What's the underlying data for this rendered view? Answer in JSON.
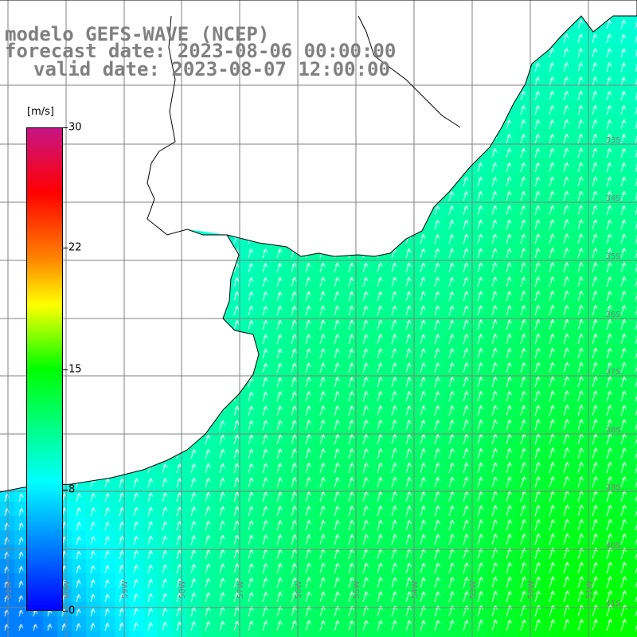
{
  "title": {
    "line1": "modelo GEFS-WAVE (NCEP)",
    "line2": "forecast date: 2023-08-06 00:00:00",
    "line3": "valid date: 2023-08-07 12:00:00"
  },
  "colorbar": {
    "unit": "[m/s]",
    "min": 0,
    "max": 30,
    "tick_labels": [
      "30",
      "22",
      "15",
      "8",
      "0"
    ],
    "tick_values": [
      30,
      22,
      15,
      8,
      0
    ],
    "colors": [
      "#0000ff",
      "#00ffff",
      "#00ff00",
      "#ffff00",
      "#ff8000",
      "#ff0000",
      "#c71585"
    ]
  },
  "grid": {
    "lat_labels": [
      "33S",
      "34S",
      "35S",
      "36S",
      "37S",
      "38S",
      "39S",
      "40S",
      "41S"
    ],
    "lon_labels": [
      "61W",
      "60W",
      "59W",
      "58W",
      "57W",
      "56W",
      "55W",
      "54W",
      "53W",
      "52W",
      "51W"
    ],
    "lat_values": [
      -33,
      -34,
      -35,
      -36,
      -37,
      -38,
      -39,
      -40,
      -41
    ],
    "lon_values": [
      -61,
      -60,
      -59,
      -58,
      -57,
      -56,
      -55,
      -54,
      -53,
      -52,
      -51
    ]
  },
  "wind_field": {
    "units": "m/s",
    "direction": "from SSW (arrows pointing NNE)",
    "min_speed_shown": 4,
    "max_speed_shown": 15
  },
  "theme": {
    "land": "#ffffff",
    "grid_line": "#808080",
    "coast_line": "#000000",
    "arrow": "#ffffff",
    "title_color": "#808080"
  }
}
